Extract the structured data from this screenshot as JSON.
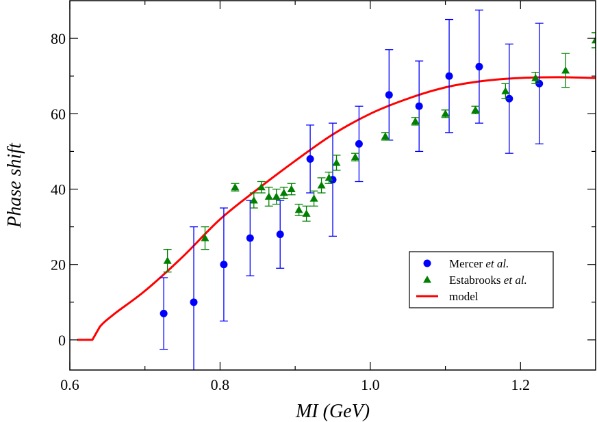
{
  "chart_data": {
    "type": "scatter",
    "xlabel": "MI (GeV)",
    "ylabel": "Phase shift",
    "xlim": [
      0.6,
      1.3
    ],
    "ylim": [
      -8,
      90
    ],
    "xticks": [
      0.6,
      0.8,
      1.0,
      1.2
    ],
    "xtick_labels": [
      "0.6",
      "0.8",
      "1.0",
      "1.2"
    ],
    "yticks": [
      0,
      20,
      40,
      60,
      80
    ],
    "ytick_labels": [
      "0",
      "20",
      "40",
      "60",
      "80"
    ],
    "grid": false,
    "legend_position": "bottom-right",
    "legend": [
      {
        "name": "Mercer",
        "suffix": "et al.",
        "marker": "circle",
        "color": "#0000ff"
      },
      {
        "name": "Estabrooks",
        "suffix": "et al.",
        "marker": "triangle",
        "color": "#008000"
      },
      {
        "name": "model",
        "suffix": "",
        "marker": "line",
        "color": "#ff0000"
      }
    ],
    "series": [
      {
        "legend_index": 0,
        "marker": "circle",
        "color": "#0000ff",
        "x": [
          0.725,
          0.765,
          0.805,
          0.84,
          0.88,
          0.92,
          0.95,
          0.985,
          1.025,
          1.065,
          1.105,
          1.145,
          1.185,
          1.225
        ],
        "y": [
          7,
          10,
          20,
          27,
          28,
          48,
          42.5,
          52,
          65,
          62,
          70,
          72.5,
          64,
          68
        ],
        "err": [
          9.5,
          20,
          15,
          10,
          9,
          9,
          15,
          10,
          12,
          12,
          15,
          15,
          14.5,
          16
        ]
      },
      {
        "legend_index": 1,
        "marker": "triangle",
        "color": "#008000",
        "x": [
          0.73,
          0.78,
          0.82,
          0.845,
          0.855,
          0.865,
          0.875,
          0.885,
          0.895,
          0.905,
          0.915,
          0.925,
          0.935,
          0.945,
          0.955,
          0.98,
          1.02,
          1.06,
          1.1,
          1.14,
          1.18,
          1.22,
          1.26,
          1.3
        ],
        "y": [
          21,
          27,
          40.5,
          37,
          40.5,
          38,
          38,
          39,
          40,
          34.5,
          33.5,
          37.5,
          41,
          43,
          47,
          48.5,
          54,
          58,
          60,
          61,
          66,
          69.5,
          71.5,
          79.5
        ],
        "err": [
          3,
          3,
          1,
          2,
          1.5,
          2.5,
          2,
          1.5,
          1.5,
          1.5,
          2,
          2,
          2,
          1.5,
          2,
          1,
          1,
          1,
          1,
          1,
          2,
          1.5,
          4.5,
          2
        ]
      }
    ],
    "model": {
      "legend_index": 2,
      "color": "#ff0000",
      "x": [
        0.61,
        0.63,
        0.64,
        0.66,
        0.7,
        0.75,
        0.8,
        0.85,
        0.9,
        0.95,
        1.0,
        1.05,
        1.1,
        1.15,
        1.2,
        1.25,
        1.3
      ],
      "y": [
        0,
        0,
        3.5,
        7,
        13,
        22,
        32,
        40,
        47.5,
        54.5,
        60,
        64,
        67,
        68.7,
        69.5,
        69.7,
        69.5
      ]
    }
  }
}
